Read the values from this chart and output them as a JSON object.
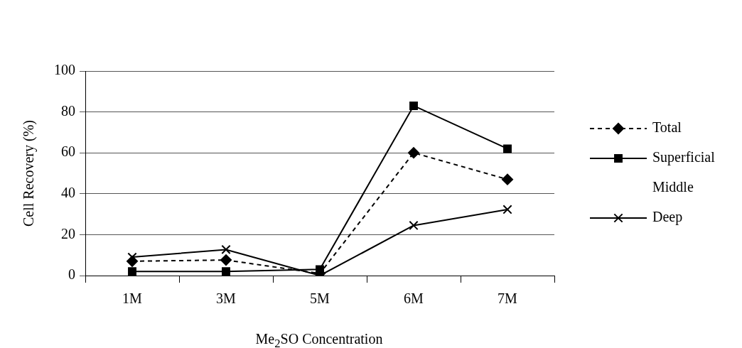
{
  "chart_data": {
    "type": "line",
    "xlabel": "Me$_{2}$SO Concentration",
    "ylabel": "Cell Recovery (%)",
    "categories": [
      "1M",
      "3M",
      "5M",
      "6M",
      "7M"
    ],
    "series": [
      {
        "name": "Total",
        "color": "#000000",
        "marker": "diamond",
        "line_style": "dashed",
        "values": [
          7,
          7.6,
          1,
          60,
          47
        ]
      },
      {
        "name": "Superficial",
        "color": "#000000",
        "marker": "square",
        "line_style": "solid",
        "values": [
          2,
          2,
          3,
          83,
          62
        ]
      },
      {
        "name": "Middle",
        "marker": "none",
        "values": [
          null,
          null,
          null,
          null,
          null
        ]
      },
      {
        "name": "Deep",
        "color": "#000000",
        "marker": "cross",
        "line_style": "solid",
        "values": [
          9,
          12.7,
          0,
          24.5,
          32.3
        ]
      }
    ],
    "ylim": [
      0,
      100
    ],
    "yticks": [
      0,
      20,
      40,
      60,
      80,
      100
    ],
    "grid": "y",
    "legend": "right"
  }
}
